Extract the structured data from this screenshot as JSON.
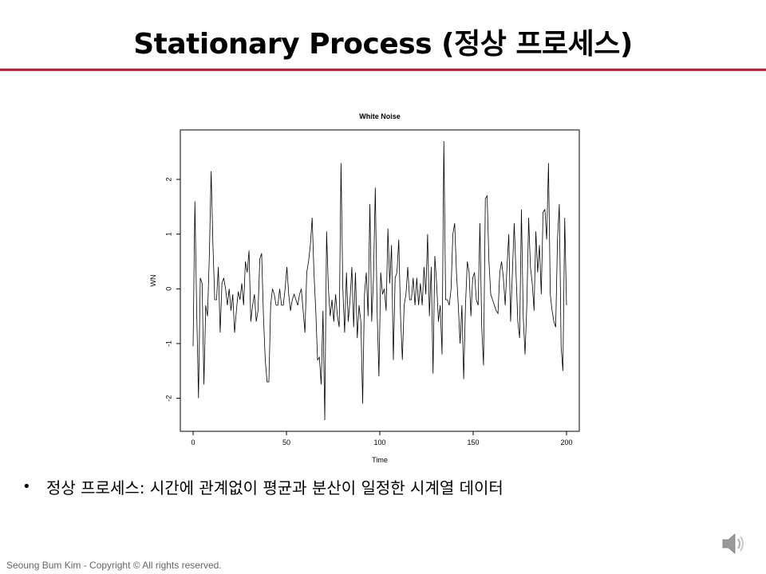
{
  "slide": {
    "title": "Stationary Process (정상 프로세스)",
    "bullet": "정상 프로세스: 시간에 관계없이 평균과 분산이 일정한 시계열 데이터",
    "footer": "Seoung Bum Kim - Copyright © All rights reserved.",
    "accent_color": "#b5243d",
    "icons": [
      "bullet-icon",
      "speaker-icon"
    ]
  },
  "chart_data": {
    "type": "line",
    "title": "White Noise",
    "xlabel": "Time",
    "ylabel": "WN",
    "xlim": [
      0,
      200
    ],
    "ylim": [
      -2.4,
      2.7
    ],
    "xticks": [
      0,
      50,
      100,
      150,
      200
    ],
    "yticks": [
      -2,
      -1,
      0,
      1,
      2
    ],
    "grid": false,
    "series": [
      {
        "values": [
          -1.05,
          1.6,
          -0.4,
          -2.0,
          0.2,
          0.1,
          -1.75,
          -0.3,
          -0.5,
          0.6,
          2.15,
          0.8,
          -0.2,
          -0.2,
          0.4,
          -0.8,
          0.1,
          0.2,
          0.0,
          -0.3,
          0.0,
          -0.4,
          -0.1,
          -0.8,
          -0.4,
          -0.05,
          -0.2,
          0.1,
          -0.3,
          0.5,
          0.3,
          0.7,
          -0.6,
          -0.3,
          -0.1,
          -0.6,
          -0.4,
          0.55,
          0.65,
          -0.5,
          -1.3,
          -1.7,
          -1.7,
          -0.3,
          0.0,
          -0.1,
          -0.3,
          -0.3,
          0.0,
          -0.3,
          -0.3,
          0.0,
          0.4,
          -0.1,
          -0.4,
          -0.2,
          -0.1,
          -0.2,
          -0.3,
          -0.1,
          0.0,
          -0.4,
          -0.8,
          0.3,
          0.5,
          0.8,
          1.3,
          0.3,
          -0.4,
          -1.3,
          -1.25,
          -1.75,
          -0.4,
          -2.4,
          1.05,
          0.0,
          -0.5,
          -0.2,
          -0.6,
          -0.1,
          -0.5,
          -0.7,
          2.3,
          0.0,
          -0.8,
          0.3,
          -0.6,
          -0.2,
          0.4,
          -0.7,
          0.3,
          -0.9,
          -0.3,
          -0.6,
          -2.1,
          -0.1,
          0.3,
          -0.5,
          1.55,
          -0.6,
          0.2,
          1.85,
          -0.4,
          -1.6,
          0.3,
          -0.1,
          0.0,
          -0.4,
          1.1,
          0.1,
          0.8,
          -1.3,
          0.2,
          0.3,
          0.9,
          -0.5,
          -1.3,
          -0.3,
          -0.1,
          0.4,
          -0.2,
          -0.2,
          0.2,
          -0.3,
          0.2,
          -0.3,
          0.1,
          -0.3,
          0.4,
          -0.1,
          1.0,
          -0.5,
          0.4,
          -1.55,
          0.6,
          0.1,
          -0.6,
          -0.3,
          -1.2,
          2.7,
          -0.2,
          -0.2,
          -0.3,
          0.0,
          1.0,
          1.2,
          0.3,
          -0.3,
          -1.0,
          -0.3,
          -1.65,
          -0.3,
          0.5,
          0.3,
          -0.5,
          0.2,
          0.3,
          -0.2,
          -0.3,
          1.2,
          -0.7,
          -1.4,
          1.65,
          1.7,
          0.5,
          -0.1,
          -0.2,
          -0.3,
          -0.4,
          -0.45,
          0.3,
          0.5,
          0.2,
          -0.3,
          0.4,
          1.0,
          -0.6,
          0.3,
          1.2,
          0.3,
          -0.6,
          -0.9,
          1.45,
          -0.5,
          -1.2,
          -0.3,
          1.3,
          0.4,
          0.1,
          -0.4,
          1.05,
          0.3,
          0.8,
          -0.1,
          1.4,
          1.45,
          0.9,
          2.3,
          -0.1,
          -0.4,
          -0.6,
          -0.7,
          0.9,
          1.55,
          -1.05,
          -1.5,
          1.3,
          -0.3
        ]
      }
    ]
  }
}
